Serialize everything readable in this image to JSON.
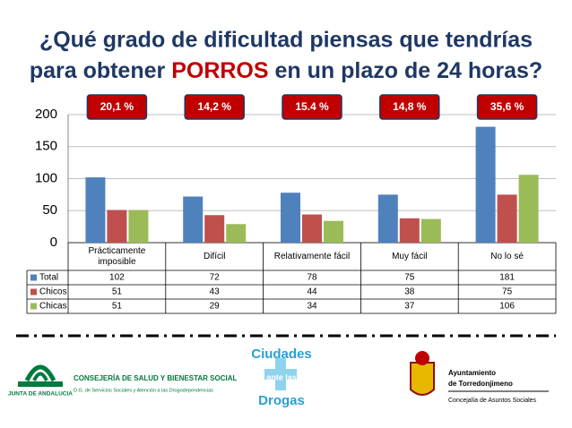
{
  "chart_data": {
    "type": "bar",
    "title_line1": "¿Qué grado de dificultad piensas que tendrías",
    "title_line2_start": "para obtener",
    "title_highlight": "PORROS",
    "title_line2_end": "en un plazo de 24 horas?",
    "annotations": [
      "20,1 %",
      "14,2 %",
      "15.4 %",
      "14,8 %",
      "35,6 %"
    ],
    "categories": [
      "Prácticamente imposible",
      "Difícil",
      "Relativamente fácil",
      "Muy fácil",
      "No lo sé"
    ],
    "series": [
      {
        "name": "Total",
        "color": "#4f81bd",
        "values": [
          102,
          72,
          78,
          75,
          181
        ]
      },
      {
        "name": "Chicos",
        "color": "#c0504d",
        "values": [
          51,
          43,
          44,
          38,
          75
        ]
      },
      {
        "name": "Chicas",
        "color": "#9bbb59",
        "values": [
          51,
          29,
          34,
          37,
          106
        ]
      }
    ],
    "ylim": [
      0,
      200
    ],
    "yticks": [
      0,
      50,
      100,
      150,
      200
    ],
    "grid": true
  },
  "footer": {
    "junta": "JUNTA DE ANDALUCIA",
    "consejeria": "CONSEJERÍA DE SALUD Y BIENESTAR SOCIAL",
    "direccion": "D.G. de Servicios Sociales y Atención a las Drogodependencias",
    "ciudades": "Ciudades",
    "ante": "ante las",
    "drogas": "Drogas",
    "ayto1": "Ayuntamiento",
    "ayto2": "de Torredonjimeno",
    "concejalia": "Concejalía de Asuntos Sociales"
  }
}
